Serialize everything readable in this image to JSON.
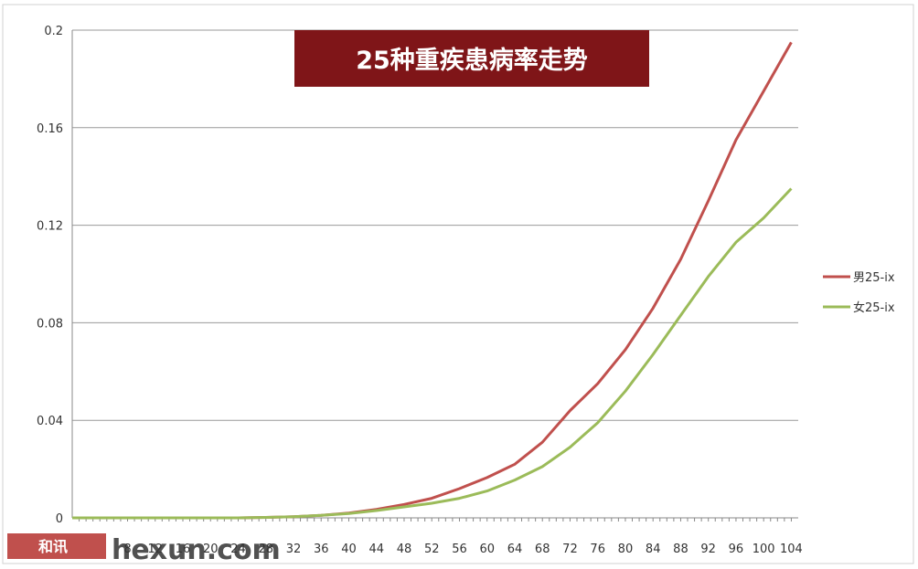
{
  "chart_data": {
    "type": "line",
    "title": "25种重疾患病率走势",
    "xlabel": "",
    "ylabel": "",
    "x_tick_labels": [
      "4",
      "8",
      "12",
      "16",
      "20",
      "24",
      "28",
      "32",
      "36",
      "40",
      "44",
      "48",
      "52",
      "56",
      "60",
      "64",
      "68",
      "72",
      "76",
      "80",
      "84",
      "88",
      "92",
      "96",
      "100",
      "104"
    ],
    "y_tick_labels": [
      "0",
      "0.04",
      "0.08",
      "0.12",
      "0.16",
      "0.2"
    ],
    "xlim": [
      0,
      105
    ],
    "ylim": [
      0,
      0.2
    ],
    "grid": "horizontal",
    "legend_position": "right",
    "series": [
      {
        "name": "男25-ix",
        "color": "#c0504d",
        "points": [
          [
            0,
            0
          ],
          [
            4,
            0
          ],
          [
            8,
            0
          ],
          [
            12,
            0
          ],
          [
            16,
            0
          ],
          [
            20,
            0
          ],
          [
            24,
            0
          ],
          [
            28,
            0.0002
          ],
          [
            32,
            0.0005
          ],
          [
            36,
            0.001
          ],
          [
            40,
            0.002
          ],
          [
            44,
            0.0035
          ],
          [
            48,
            0.0055
          ],
          [
            52,
            0.008
          ],
          [
            56,
            0.012
          ],
          [
            60,
            0.0165
          ],
          [
            64,
            0.022
          ],
          [
            68,
            0.031
          ],
          [
            72,
            0.044
          ],
          [
            76,
            0.055
          ],
          [
            80,
            0.069
          ],
          [
            84,
            0.086
          ],
          [
            88,
            0.106
          ],
          [
            92,
            0.13
          ],
          [
            96,
            0.155
          ],
          [
            100,
            0.175
          ],
          [
            104,
            0.195
          ]
        ]
      },
      {
        "name": "女25-ix",
        "color": "#9bbb59",
        "points": [
          [
            0,
            0
          ],
          [
            4,
            0
          ],
          [
            8,
            0
          ],
          [
            12,
            0
          ],
          [
            16,
            0
          ],
          [
            20,
            0
          ],
          [
            24,
            0
          ],
          [
            28,
            0.0002
          ],
          [
            32,
            0.0005
          ],
          [
            36,
            0.001
          ],
          [
            40,
            0.0018
          ],
          [
            44,
            0.003
          ],
          [
            48,
            0.0045
          ],
          [
            52,
            0.006
          ],
          [
            56,
            0.008
          ],
          [
            60,
            0.011
          ],
          [
            64,
            0.0155
          ],
          [
            68,
            0.021
          ],
          [
            72,
            0.029
          ],
          [
            76,
            0.039
          ],
          [
            80,
            0.052
          ],
          [
            84,
            0.067
          ],
          [
            88,
            0.083
          ],
          [
            92,
            0.099
          ],
          [
            96,
            0.113
          ],
          [
            100,
            0.123
          ],
          [
            104,
            0.135
          ]
        ]
      }
    ]
  },
  "watermark": {
    "brand": "和讯",
    "site": "hexun.com"
  }
}
